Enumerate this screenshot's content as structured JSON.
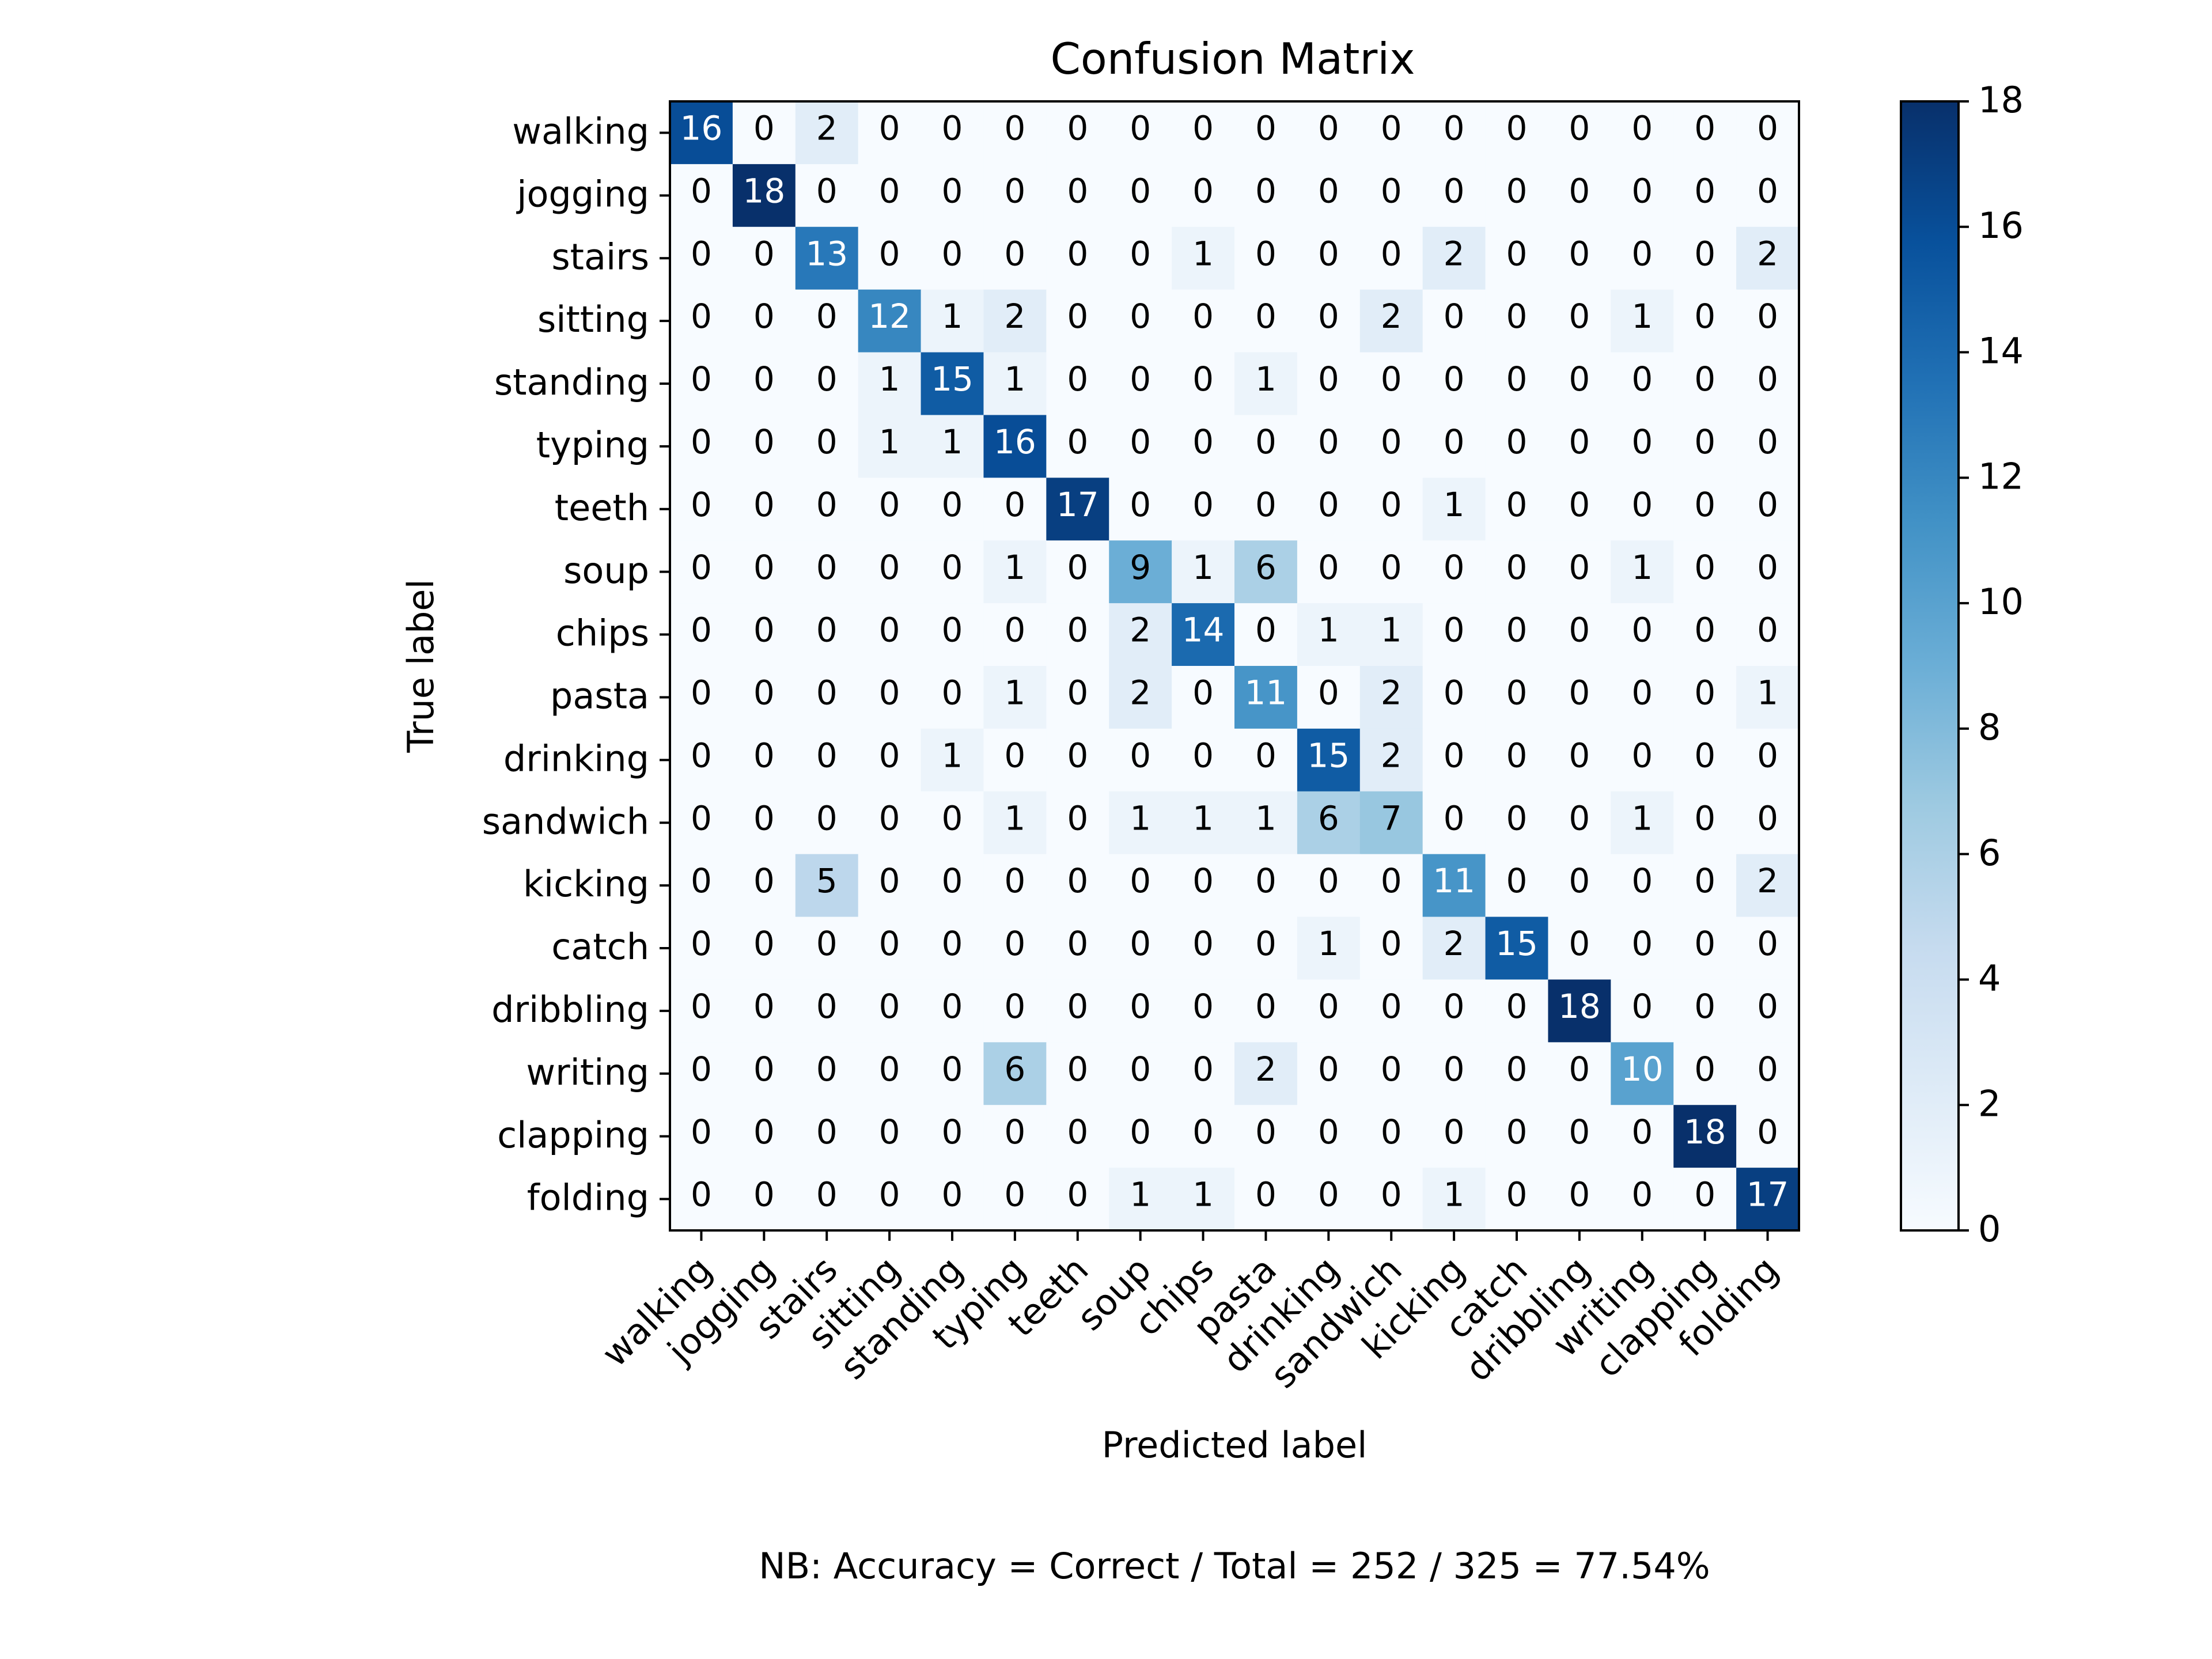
{
  "chart_data": {
    "type": "heatmap",
    "title": "Confusion Matrix",
    "xlabel": "Predicted label",
    "ylabel": "True label",
    "labels": [
      "walking",
      "jogging",
      "stairs",
      "sitting",
      "standing",
      "typing",
      "teeth",
      "soup",
      "chips",
      "pasta",
      "drinking",
      "sandwich",
      "kicking",
      "catch",
      "dribbling",
      "writing",
      "clapping",
      "folding"
    ],
    "matrix": [
      [
        16,
        0,
        2,
        0,
        0,
        0,
        0,
        0,
        0,
        0,
        0,
        0,
        0,
        0,
        0,
        0,
        0,
        0
      ],
      [
        0,
        18,
        0,
        0,
        0,
        0,
        0,
        0,
        0,
        0,
        0,
        0,
        0,
        0,
        0,
        0,
        0,
        0
      ],
      [
        0,
        0,
        13,
        0,
        0,
        0,
        0,
        0,
        1,
        0,
        0,
        0,
        2,
        0,
        0,
        0,
        0,
        2
      ],
      [
        0,
        0,
        0,
        12,
        1,
        2,
        0,
        0,
        0,
        0,
        0,
        2,
        0,
        0,
        0,
        1,
        0,
        0
      ],
      [
        0,
        0,
        0,
        1,
        15,
        1,
        0,
        0,
        0,
        1,
        0,
        0,
        0,
        0,
        0,
        0,
        0,
        0
      ],
      [
        0,
        0,
        0,
        1,
        1,
        16,
        0,
        0,
        0,
        0,
        0,
        0,
        0,
        0,
        0,
        0,
        0,
        0
      ],
      [
        0,
        0,
        0,
        0,
        0,
        0,
        17,
        0,
        0,
        0,
        0,
        0,
        1,
        0,
        0,
        0,
        0,
        0
      ],
      [
        0,
        0,
        0,
        0,
        0,
        1,
        0,
        9,
        1,
        6,
        0,
        0,
        0,
        0,
        0,
        1,
        0,
        0
      ],
      [
        0,
        0,
        0,
        0,
        0,
        0,
        0,
        2,
        14,
        0,
        1,
        1,
        0,
        0,
        0,
        0,
        0,
        0
      ],
      [
        0,
        0,
        0,
        0,
        0,
        1,
        0,
        2,
        0,
        11,
        0,
        2,
        0,
        0,
        0,
        0,
        0,
        1
      ],
      [
        0,
        0,
        0,
        0,
        1,
        0,
        0,
        0,
        0,
        0,
        15,
        2,
        0,
        0,
        0,
        0,
        0,
        0
      ],
      [
        0,
        0,
        0,
        0,
        0,
        1,
        0,
        1,
        1,
        1,
        6,
        7,
        0,
        0,
        0,
        1,
        0,
        0
      ],
      [
        0,
        0,
        5,
        0,
        0,
        0,
        0,
        0,
        0,
        0,
        0,
        0,
        11,
        0,
        0,
        0,
        0,
        2
      ],
      [
        0,
        0,
        0,
        0,
        0,
        0,
        0,
        0,
        0,
        0,
        1,
        0,
        2,
        15,
        0,
        0,
        0,
        0
      ],
      [
        0,
        0,
        0,
        0,
        0,
        0,
        0,
        0,
        0,
        0,
        0,
        0,
        0,
        0,
        18,
        0,
        0,
        0
      ],
      [
        0,
        0,
        0,
        0,
        0,
        6,
        0,
        0,
        0,
        2,
        0,
        0,
        0,
        0,
        0,
        10,
        0,
        0
      ],
      [
        0,
        0,
        0,
        0,
        0,
        0,
        0,
        0,
        0,
        0,
        0,
        0,
        0,
        0,
        0,
        0,
        18,
        0
      ],
      [
        0,
        0,
        0,
        0,
        0,
        0,
        0,
        1,
        1,
        0,
        0,
        0,
        1,
        0,
        0,
        0,
        0,
        17
      ]
    ],
    "colorbar": {
      "min": 0,
      "max": 18,
      "ticks": [
        0,
        2,
        4,
        6,
        8,
        10,
        12,
        14,
        16,
        18
      ]
    },
    "colormap": "Blues",
    "grid": false,
    "footer": "NB: Accuracy = Correct / Total = 252 / 325 = 77.54%"
  },
  "colors": {
    "text_dark": "#000000",
    "text_light": "#ffffff",
    "axis": "#000000",
    "background": "#ffffff"
  }
}
